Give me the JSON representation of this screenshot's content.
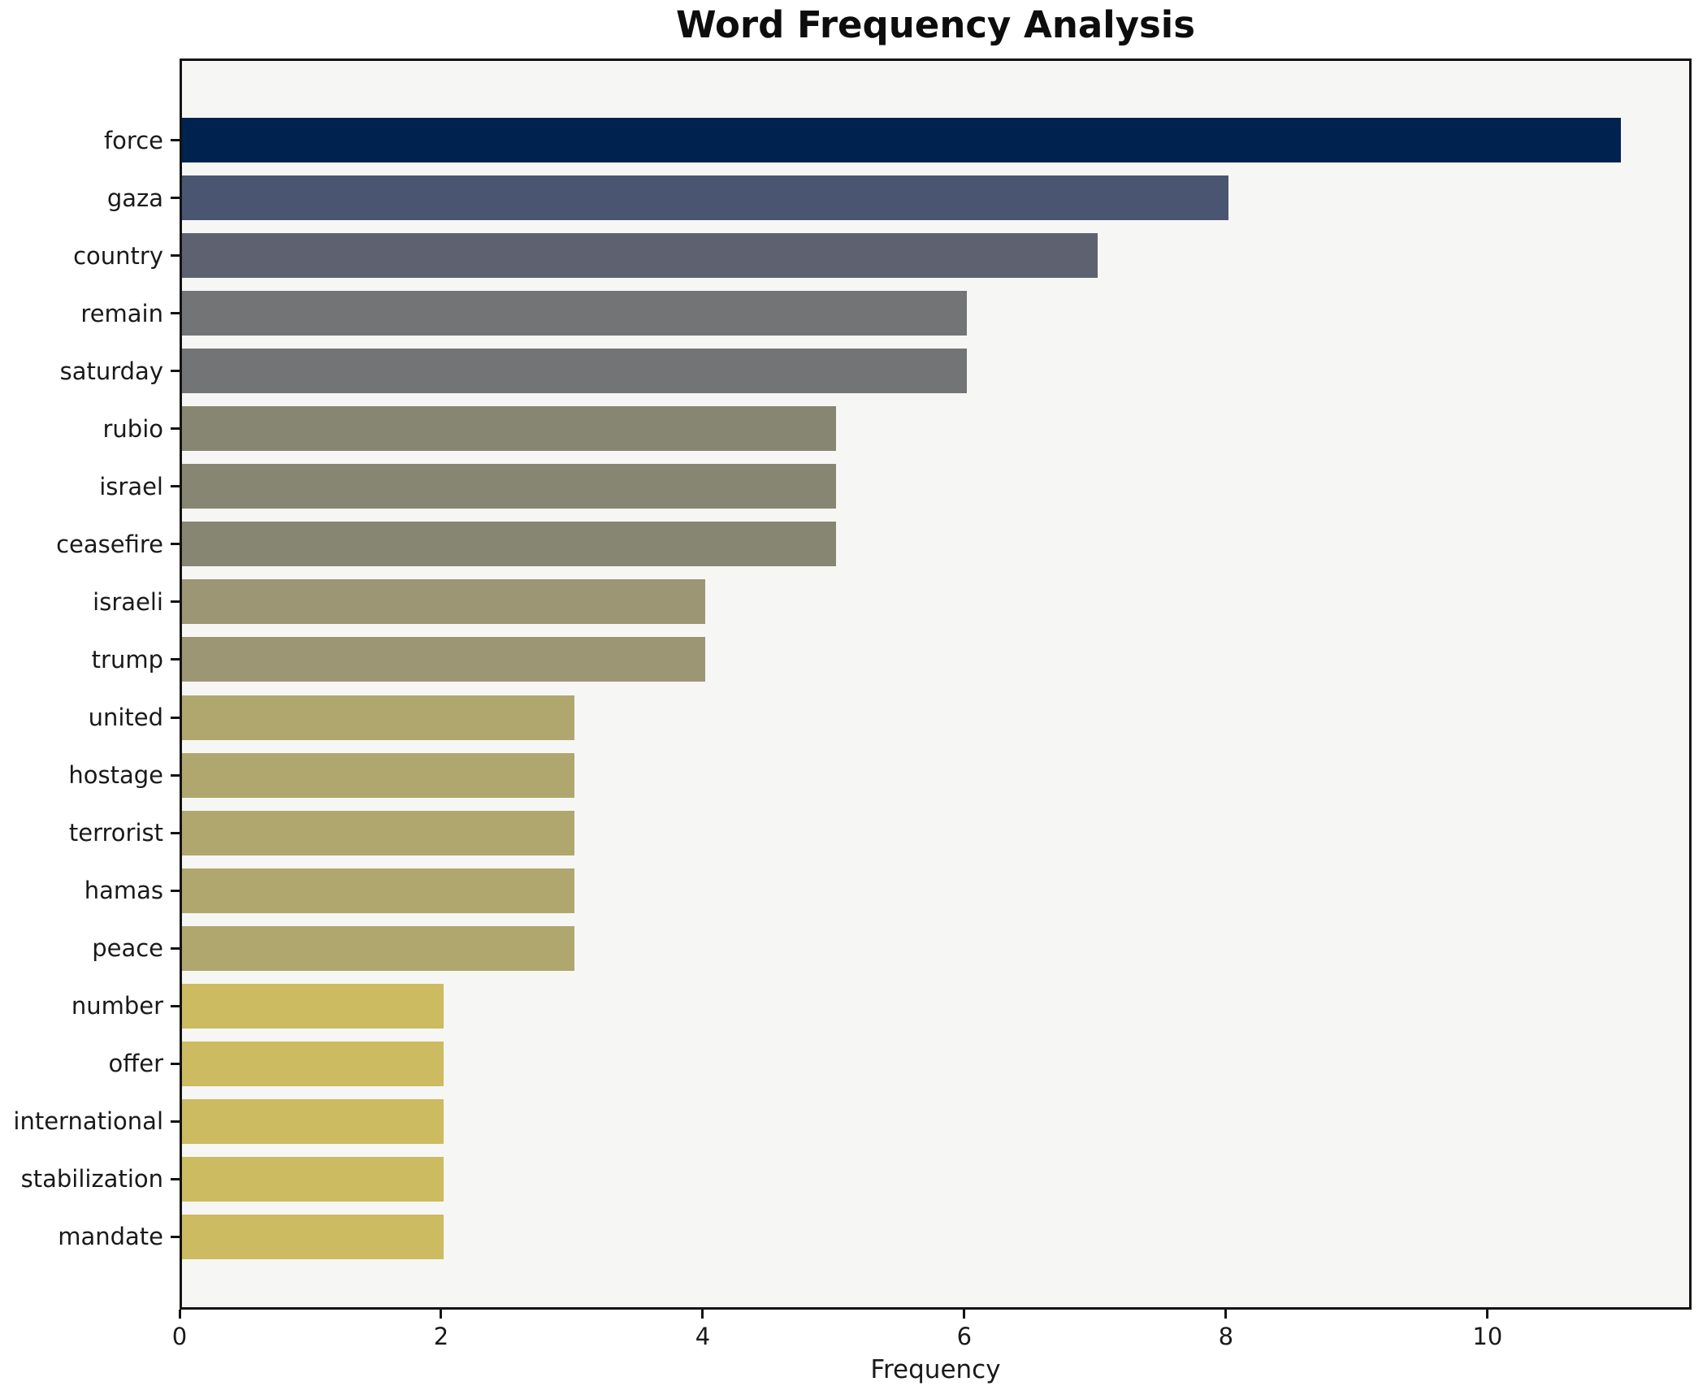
{
  "chart_data": {
    "type": "bar",
    "orientation": "horizontal",
    "title": "Word Frequency Analysis",
    "xlabel": "Frequency",
    "ylabel": "",
    "categories": [
      "force",
      "gaza",
      "country",
      "remain",
      "saturday",
      "rubio",
      "israel",
      "ceasefire",
      "israeli",
      "trump",
      "united",
      "hostage",
      "terrorist",
      "hamas",
      "peace",
      "number",
      "offer",
      "international",
      "stabilization",
      "mandate"
    ],
    "values": [
      11,
      8,
      7,
      6,
      6,
      5,
      5,
      5,
      4,
      4,
      3,
      3,
      3,
      3,
      3,
      2,
      2,
      2,
      2,
      2
    ],
    "bar_colors": [
      "#00224e",
      "#4a5572",
      "#5d6170",
      "#727476",
      "#727476",
      "#878672",
      "#878672",
      "#878672",
      "#9c9674",
      "#9c9674",
      "#b0a76e",
      "#b0a76e",
      "#b0a76e",
      "#b0a76e",
      "#b0a76e",
      "#ccbb60",
      "#ccbb60",
      "#ccbb60",
      "#ccbb60",
      "#ccbb60"
    ],
    "xticks": [
      0,
      2,
      4,
      6,
      8,
      10
    ],
    "xlim": [
      0,
      11.56
    ],
    "grid": false,
    "legend": "none",
    "plot_background": "#f6f6f5",
    "figure_background": "#ffffff",
    "axis_color": "#141414"
  }
}
